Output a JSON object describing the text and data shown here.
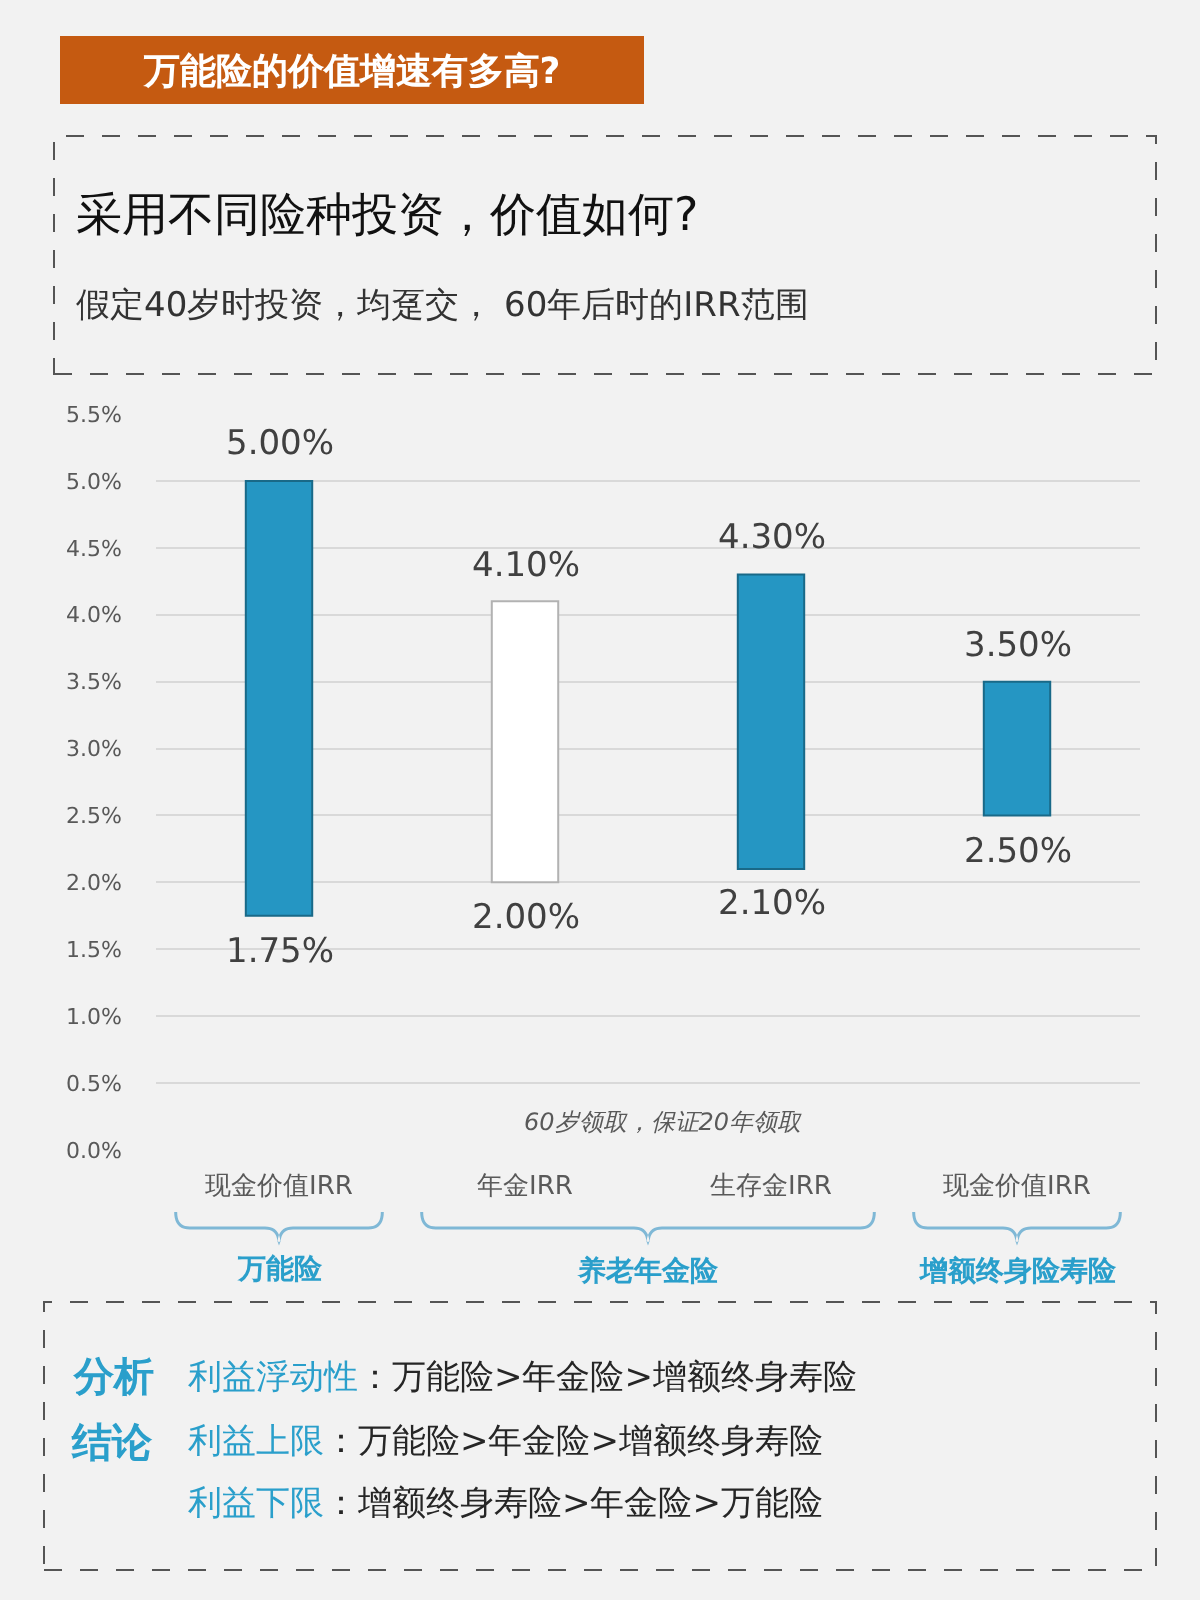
{
  "chart_data": {
    "type": "bar",
    "title": "万能险的价值增速有多高?",
    "subtitle": "采用不同险种投资，价值如何?",
    "categories": [
      "现金价值IRR",
      "年金IRR",
      "生存金IRR",
      "现金价值IRR"
    ],
    "base": [
      1.75,
      2.0,
      2.1,
      2.5
    ],
    "values": [
      3.25,
      2.1,
      2.2,
      1.0
    ],
    "colors": [
      "#2596c3",
      "#ffffff",
      "#2596c3",
      "#2596c3"
    ],
    "ylim": [
      0,
      5.5
    ],
    "yticks": [
      {
        "value": 0,
        "label": "0.0%"
      },
      {
        "value": 0.5,
        "label": "0.5%"
      },
      {
        "value": 1,
        "label": "1.0%"
      },
      {
        "value": 1.5,
        "label": "1.5%"
      },
      {
        "value": 2,
        "label": "2.0%"
      },
      {
        "value": 2.5,
        "label": "2.5%"
      },
      {
        "value": 3,
        "label": "3.0%"
      },
      {
        "value": 3.5,
        "label": "3.5%"
      },
      {
        "value": 4,
        "label": "4.0%"
      },
      {
        "value": 4.5,
        "label": "4.5%"
      },
      {
        "value": 5,
        "label": "5.0%"
      },
      {
        "value": 5.5,
        "label": "5.5%"
      }
    ],
    "grid": "y",
    "annotations": [
      "假定40岁时投资，均趸交， 60年后时的IRR范围",
      "60岁领取，保证20年领取",
      "万能险",
      "养老年金险",
      "增额终身险寿险",
      "分析",
      "结论",
      "利益浮动性",
      "：万能险>年金险>增额终身寿险",
      "利益上限",
      "：万能险>年金险>增额终身寿险",
      "利益下限",
      "：增额终身寿险>年金险>万能险",
      "3.50%",
      "2.50%",
      {
        "text": "5.00%",
        "x": "现金价值IRR",
        "y": 5.0
      },
      {
        "text": "1.75%",
        "x": "现金价值IRR",
        "y": 1.75
      },
      {
        "text": "4.10%",
        "x": "年金IRR",
        "y": 4.1
      },
      {
        "text": "2.00%",
        "x": "年金IRR",
        "y": 2.0
      },
      {
        "text": "4.30%",
        "x": "生存金IRR",
        "y": 4.3
      },
      {
        "text": "2.10%",
        "x": "生存金IRR",
        "y": 2.1
      }
    ]
  }
}
